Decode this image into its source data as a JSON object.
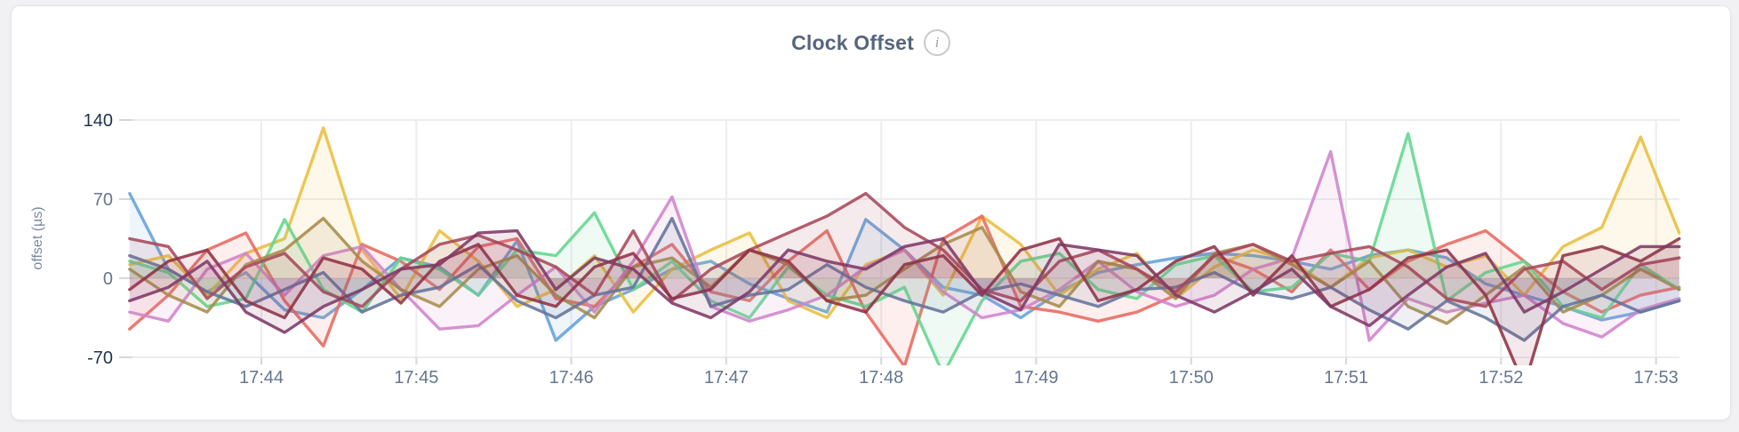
{
  "header": {
    "title": "Clock Offset",
    "info_glyph": "i"
  },
  "colors": {
    "page_bg": "#f1f1f3",
    "card_bg": "#ffffff",
    "card_border": "#e5e5e9",
    "title": "#55657c",
    "info_icon": "#a3a3ab",
    "grid": "#ededf0",
    "grid_tick": "#d6d6db",
    "axis_label": "#7d89a1",
    "tick_label": "#66768f",
    "tick_label_extreme": "#1f3254"
  },
  "chart_data": {
    "type": "line",
    "title": "Clock Offset",
    "xlabel": "",
    "ylabel": "offset (µs)",
    "ylim": [
      -70,
      140
    ],
    "y_ticks": [
      {
        "label": "140",
        "value": 140,
        "extreme": true
      },
      {
        "label": "70",
        "value": 70,
        "extreme": false
      },
      {
        "label": "0",
        "value": 0,
        "extreme": false
      },
      {
        "label": "-70",
        "value": -70,
        "extreme": true
      }
    ],
    "x_ticks": [
      "17:44",
      "17:45",
      "17:46",
      "17:47",
      "17:48",
      "17:49",
      "17:50",
      "17:51",
      "17:52",
      "17:53"
    ],
    "x_start_min": 0.15,
    "x_step_min": 0.25,
    "x_range_min": [
      0.15,
      10.15
    ],
    "baseline": 0,
    "grid": true,
    "legend": "none",
    "series": [
      {
        "name": "blue",
        "color": "#64a0d9",
        "values": [
          75,
          8,
          -12,
          5,
          -28,
          -35,
          -10,
          18,
          10,
          -15,
          33,
          -55,
          -25,
          -10,
          8,
          15,
          -5,
          -18,
          -30,
          52,
          25,
          -8,
          -15,
          -35,
          -12,
          5,
          12,
          18,
          22,
          20,
          15,
          8,
          20,
          25,
          18,
          -5,
          -15,
          -25,
          -37,
          -30,
          -20
        ]
      },
      {
        "name": "gold",
        "color": "#e9be3e",
        "values": [
          12,
          20,
          -15,
          22,
          35,
          133,
          25,
          -18,
          42,
          15,
          -25,
          -10,
          20,
          -30,
          8,
          25,
          40,
          -20,
          -35,
          12,
          25,
          -15,
          55,
          30,
          -15,
          8,
          22,
          -18,
          10,
          25,
          15,
          -8,
          18,
          25,
          10,
          20,
          -15,
          28,
          45,
          125,
          40
        ]
      },
      {
        "name": "salmon",
        "color": "#e8695f",
        "values": [
          -45,
          -15,
          25,
          40,
          -20,
          -60,
          30,
          15,
          -10,
          28,
          35,
          -18,
          -25,
          10,
          30,
          -12,
          -20,
          15,
          42,
          -30,
          -78,
          35,
          55,
          -25,
          -30,
          -38,
          -30,
          -15,
          20,
          8,
          -12,
          25,
          -10,
          15,
          30,
          42,
          15,
          -12,
          -30,
          -15,
          -8
        ]
      },
      {
        "name": "green",
        "color": "#63d68e",
        "values": [
          15,
          5,
          -25,
          -18,
          52,
          -10,
          -30,
          18,
          8,
          -15,
          25,
          20,
          58,
          -10,
          15,
          -20,
          -35,
          10,
          -15,
          -25,
          -8,
          -85,
          -20,
          15,
          22,
          -10,
          -18,
          12,
          20,
          -12,
          -8,
          22,
          15,
          128,
          -20,
          5,
          15,
          -25,
          -35,
          12,
          -10
        ]
      },
      {
        "name": "orchid",
        "color": "#d083cb",
        "values": [
          -30,
          -38,
          8,
          22,
          -15,
          20,
          28,
          -10,
          -45,
          -42,
          -15,
          10,
          -30,
          15,
          72,
          -25,
          -38,
          -28,
          -15,
          10,
          25,
          -12,
          -35,
          -28,
          -10,
          15,
          -12,
          -25,
          -15,
          8,
          18,
          112,
          -55,
          -18,
          -30,
          -22,
          -15,
          -40,
          -52,
          -28,
          -18
        ]
      },
      {
        "name": "olive",
        "color": "#a78b4b",
        "values": [
          8,
          -15,
          -30,
          12,
          25,
          53,
          15,
          -10,
          -25,
          8,
          20,
          -15,
          -35,
          10,
          18,
          -8,
          25,
          12,
          -20,
          -15,
          8,
          30,
          45,
          -12,
          -25,
          15,
          8,
          -18,
          22,
          30,
          12,
          -8,
          15,
          -25,
          -40,
          -15,
          10,
          -30,
          -15,
          8,
          -10
        ]
      },
      {
        "name": "slate",
        "color": "#64739b",
        "values": [
          20,
          8,
          -12,
          -25,
          -10,
          5,
          -30,
          -15,
          -8,
          12,
          -20,
          -35,
          -15,
          -8,
          53,
          -25,
          -15,
          -10,
          12,
          -8,
          -20,
          -30,
          -12,
          -5,
          -15,
          -25,
          -10,
          -8,
          5,
          -12,
          -18,
          -8,
          -28,
          -45,
          -20,
          -35,
          -55,
          -25,
          -15,
          -30,
          -20
        ]
      },
      {
        "name": "maroon",
        "color": "#a8485a",
        "values": [
          35,
          28,
          -18,
          10,
          22,
          -12,
          -25,
          8,
          30,
          38,
          25,
          10,
          -15,
          42,
          -20,
          8,
          25,
          40,
          55,
          75,
          45,
          25,
          -10,
          -20,
          15,
          25,
          8,
          -12,
          20,
          30,
          15,
          22,
          28,
          10,
          -18,
          -25,
          8,
          15,
          -10,
          12,
          18
        ]
      },
      {
        "name": "darkred",
        "color": "#8e3245",
        "values": [
          -10,
          15,
          25,
          -20,
          -35,
          18,
          8,
          -22,
          15,
          30,
          -15,
          -25,
          10,
          22,
          -18,
          -10,
          25,
          15,
          -20,
          -30,
          12,
          20,
          -15,
          25,
          35,
          -20,
          -10,
          15,
          28,
          -15,
          20,
          -25,
          -10,
          18,
          25,
          -15,
          -95,
          20,
          28,
          15,
          35
        ]
      },
      {
        "name": "purple",
        "color": "#7e3967",
        "values": [
          -20,
          -8,
          15,
          -30,
          -48,
          -25,
          -10,
          8,
          12,
          40,
          42,
          -10,
          18,
          8,
          -22,
          -35,
          -12,
          25,
          15,
          8,
          28,
          35,
          -12,
          -28,
          30,
          25,
          20,
          -15,
          -30,
          -12,
          8,
          -25,
          -42,
          -15,
          10,
          22,
          -30,
          -12,
          8,
          28,
          28
        ]
      }
    ]
  }
}
